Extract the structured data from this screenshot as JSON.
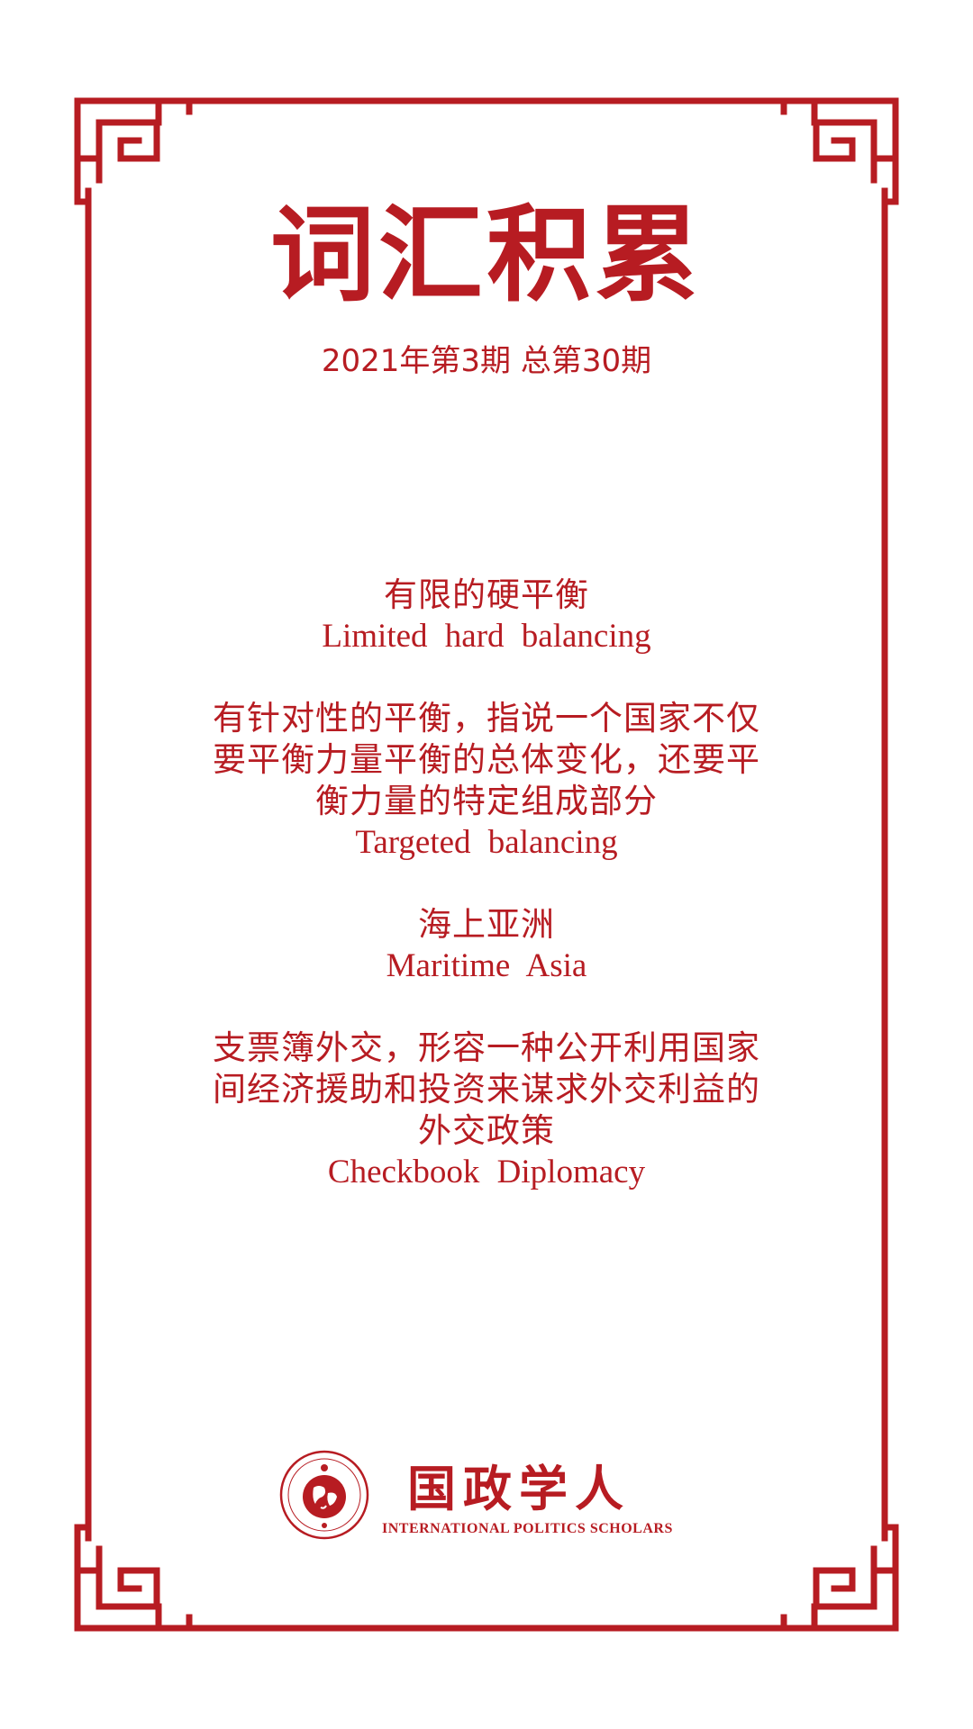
{
  "colors": {
    "accent": "#b71c22",
    "background": "#ffffff"
  },
  "header": {
    "title": "词汇积累",
    "issue": "2021年第3期 总第30期"
  },
  "entries": [
    {
      "zh": [
        "有限的硬平衡"
      ],
      "en": "Limited hard balancing"
    },
    {
      "zh": [
        "有针对性的平衡，指说一个国家不仅",
        "要平衡力量平衡的总体变化，还要平",
        "衡力量的特定组成部分"
      ],
      "en": "Targeted balancing"
    },
    {
      "zh": [
        "海上亚洲"
      ],
      "en": "Maritime Asia"
    },
    {
      "zh": [
        "支票簿外交，形容一种公开利用国家",
        "间经济援助和投资来谋求外交利益的",
        "外交政策"
      ],
      "en": "Checkbook Diplomacy"
    }
  ],
  "brand": {
    "name": "国政学人",
    "english": "INTERNATIONAL POLITICS SCHOLARS",
    "logo_icon": "globe-seal-icon"
  }
}
